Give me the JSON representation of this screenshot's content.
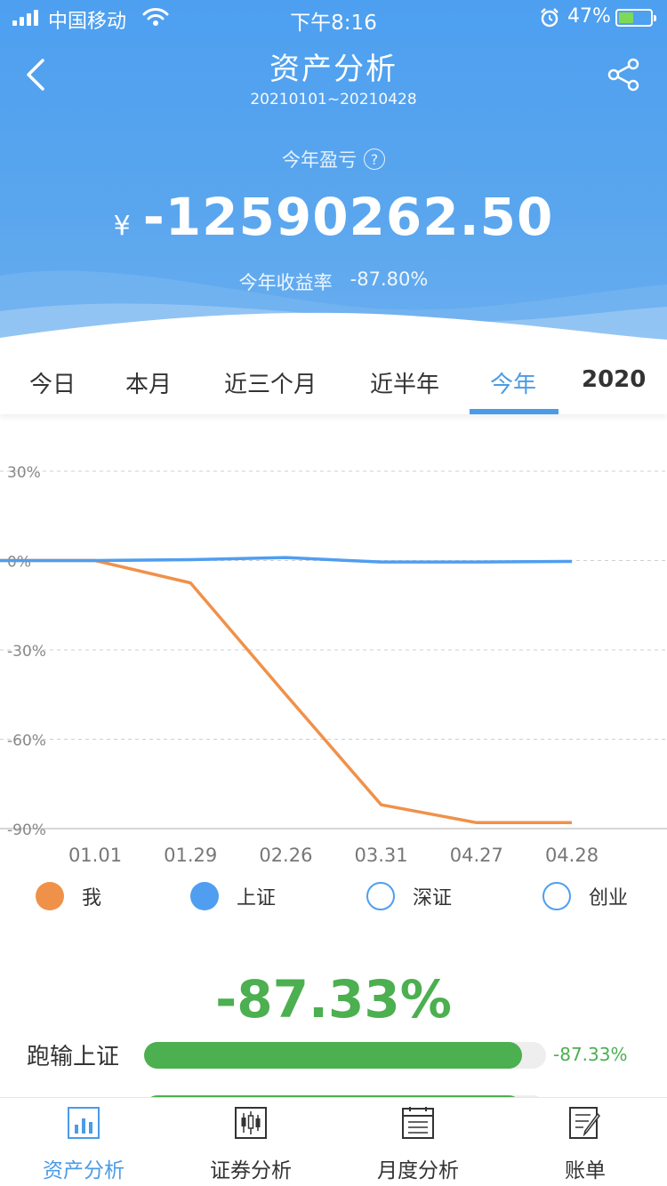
{
  "status_bar": {
    "carrier": "中国移动",
    "time": "下午8:16",
    "battery_pct": "47%",
    "battery_level": 0.47
  },
  "header": {
    "title": "资产分析",
    "date_range": "20210101~20210428",
    "pnl_label": "今年盈亏",
    "help_symbol": "?",
    "currency": "¥",
    "pnl_value": "-12590262.50",
    "rate_label": "今年收益率",
    "rate_value": "-87.80%"
  },
  "tabs": [
    {
      "label": "今日"
    },
    {
      "label": "本月"
    },
    {
      "label": "近三个月"
    },
    {
      "label": "近半年"
    },
    {
      "label": "今年",
      "active": true
    },
    {
      "label": "2020"
    }
  ],
  "chart_data": {
    "type": "line",
    "x": [
      "01.01",
      "01.29",
      "02.26",
      "03.31",
      "04.27",
      "04.28"
    ],
    "y_ticks": [
      "30%",
      "0%",
      "-30%",
      "-60%",
      "-90%"
    ],
    "ylim": [
      -90,
      30
    ],
    "grid": true,
    "series": [
      {
        "name": "我",
        "color": "#f0914a",
        "values": [
          0,
          -7.5,
          -45,
          -82,
          -88,
          -88
        ]
      },
      {
        "name": "上证",
        "color": "#4f9ef0",
        "values": [
          0,
          0.3,
          1,
          -0.5,
          -0.5,
          -0.3
        ]
      }
    ]
  },
  "legend": [
    {
      "label": "我",
      "color": "#f0914a",
      "filled": true
    },
    {
      "label": "上证",
      "color": "#4f9ef0",
      "filled": true
    },
    {
      "label": "深证",
      "color": "#4f9ef0",
      "filled": false
    },
    {
      "label": "创业",
      "color": "#4f9ef0",
      "filled": false
    }
  ],
  "summary": {
    "big_pct": "-87.33%",
    "compare_rows": [
      {
        "label": "跑输上证",
        "value": "-87.33%",
        "fill": 0.94
      }
    ]
  },
  "bottom_nav": [
    {
      "label": "资产分析",
      "icon": "bar-chart-icon",
      "active": true
    },
    {
      "label": "证券分析",
      "icon": "candlestick-icon"
    },
    {
      "label": "月度分析",
      "icon": "calendar-icon"
    },
    {
      "label": "账单",
      "icon": "bill-edit-icon"
    }
  ]
}
